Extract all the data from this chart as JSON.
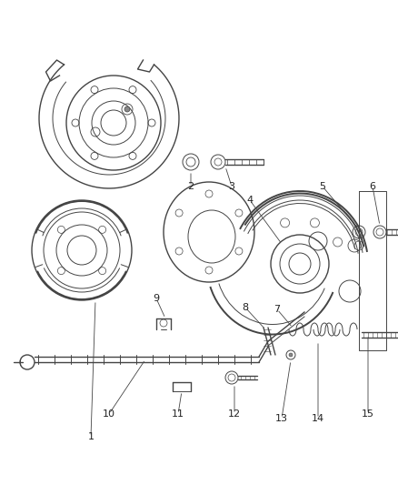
{
  "bg_color": "#ffffff",
  "line_color": "#444444",
  "label_color": "#222222",
  "fig_width": 4.38,
  "fig_height": 5.33,
  "dpi": 100
}
